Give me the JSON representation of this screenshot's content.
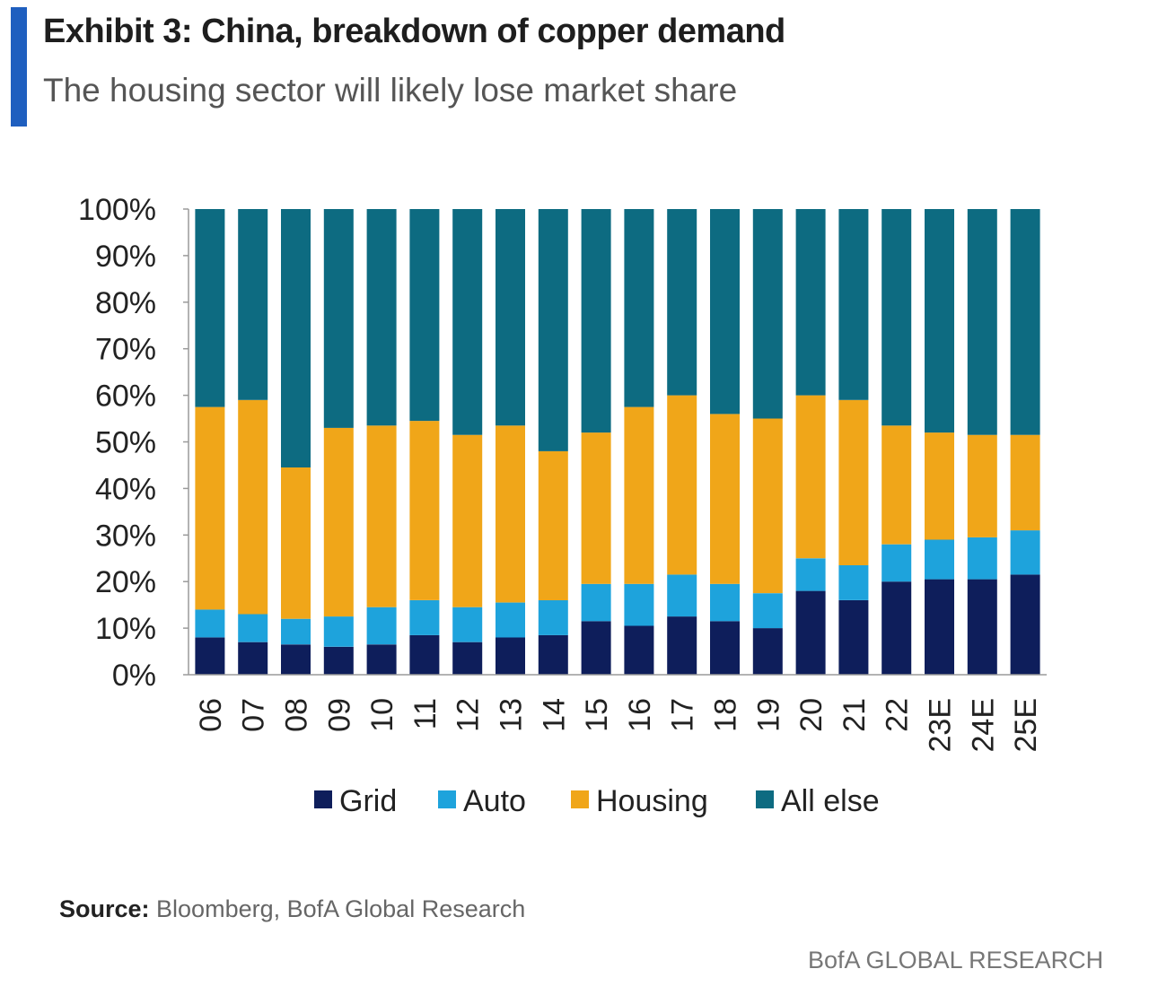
{
  "header": {
    "title": "Exhibit 3: China, breakdown of copper demand",
    "subtitle": "The housing sector will likely lose market share"
  },
  "footer": {
    "source_label": "Source:",
    "source_text": " Bloomberg, BofA Global Research",
    "brand": "BofA GLOBAL RESEARCH"
  },
  "colors": {
    "accent": "#1f5fbf",
    "grid": "#0e1e5b",
    "auto": "#1ea3dc",
    "housing": "#f0a619",
    "all_else": "#0d6b81"
  },
  "chart_data": {
    "type": "bar",
    "stacked": true,
    "percent": true,
    "categories": [
      "06",
      "07",
      "08",
      "09",
      "10",
      "11",
      "12",
      "13",
      "14",
      "15",
      "16",
      "17",
      "18",
      "19",
      "20",
      "21",
      "22",
      "23E",
      "24E",
      "25E"
    ],
    "series": [
      {
        "name": "Grid",
        "color": "#0e1e5b",
        "values": [
          8,
          7,
          6.5,
          6,
          6.5,
          8.5,
          7,
          8,
          8.5,
          11.5,
          10.5,
          12.5,
          11.5,
          10,
          18,
          16,
          20,
          20.5,
          20.5,
          21.5
        ]
      },
      {
        "name": "Auto",
        "color": "#1ea3dc",
        "values": [
          6,
          6,
          5.5,
          6.5,
          8,
          7.5,
          7.5,
          7.5,
          7.5,
          8,
          9,
          9,
          8,
          7.5,
          7,
          7.5,
          8,
          8.5,
          9,
          9.5
        ]
      },
      {
        "name": "Housing",
        "color": "#f0a619",
        "values": [
          43.5,
          46,
          32.5,
          40.5,
          39,
          38.5,
          37,
          38,
          32,
          32.5,
          38,
          38.5,
          36.5,
          37.5,
          35,
          35.5,
          25.5,
          23,
          22,
          20.5
        ]
      },
      {
        "name": "All else",
        "color": "#0d6b81",
        "values": [
          42.5,
          41,
          55.5,
          47,
          46.5,
          45.5,
          48.5,
          46.5,
          52,
          48,
          42.5,
          40,
          44,
          45,
          40,
          41,
          46.5,
          48,
          48.5,
          48.5
        ]
      }
    ],
    "yticks": [
      "0%",
      "10%",
      "20%",
      "30%",
      "40%",
      "50%",
      "60%",
      "70%",
      "80%",
      "90%",
      "100%"
    ],
    "ylim": [
      0,
      100
    ],
    "legend": "bottom"
  }
}
